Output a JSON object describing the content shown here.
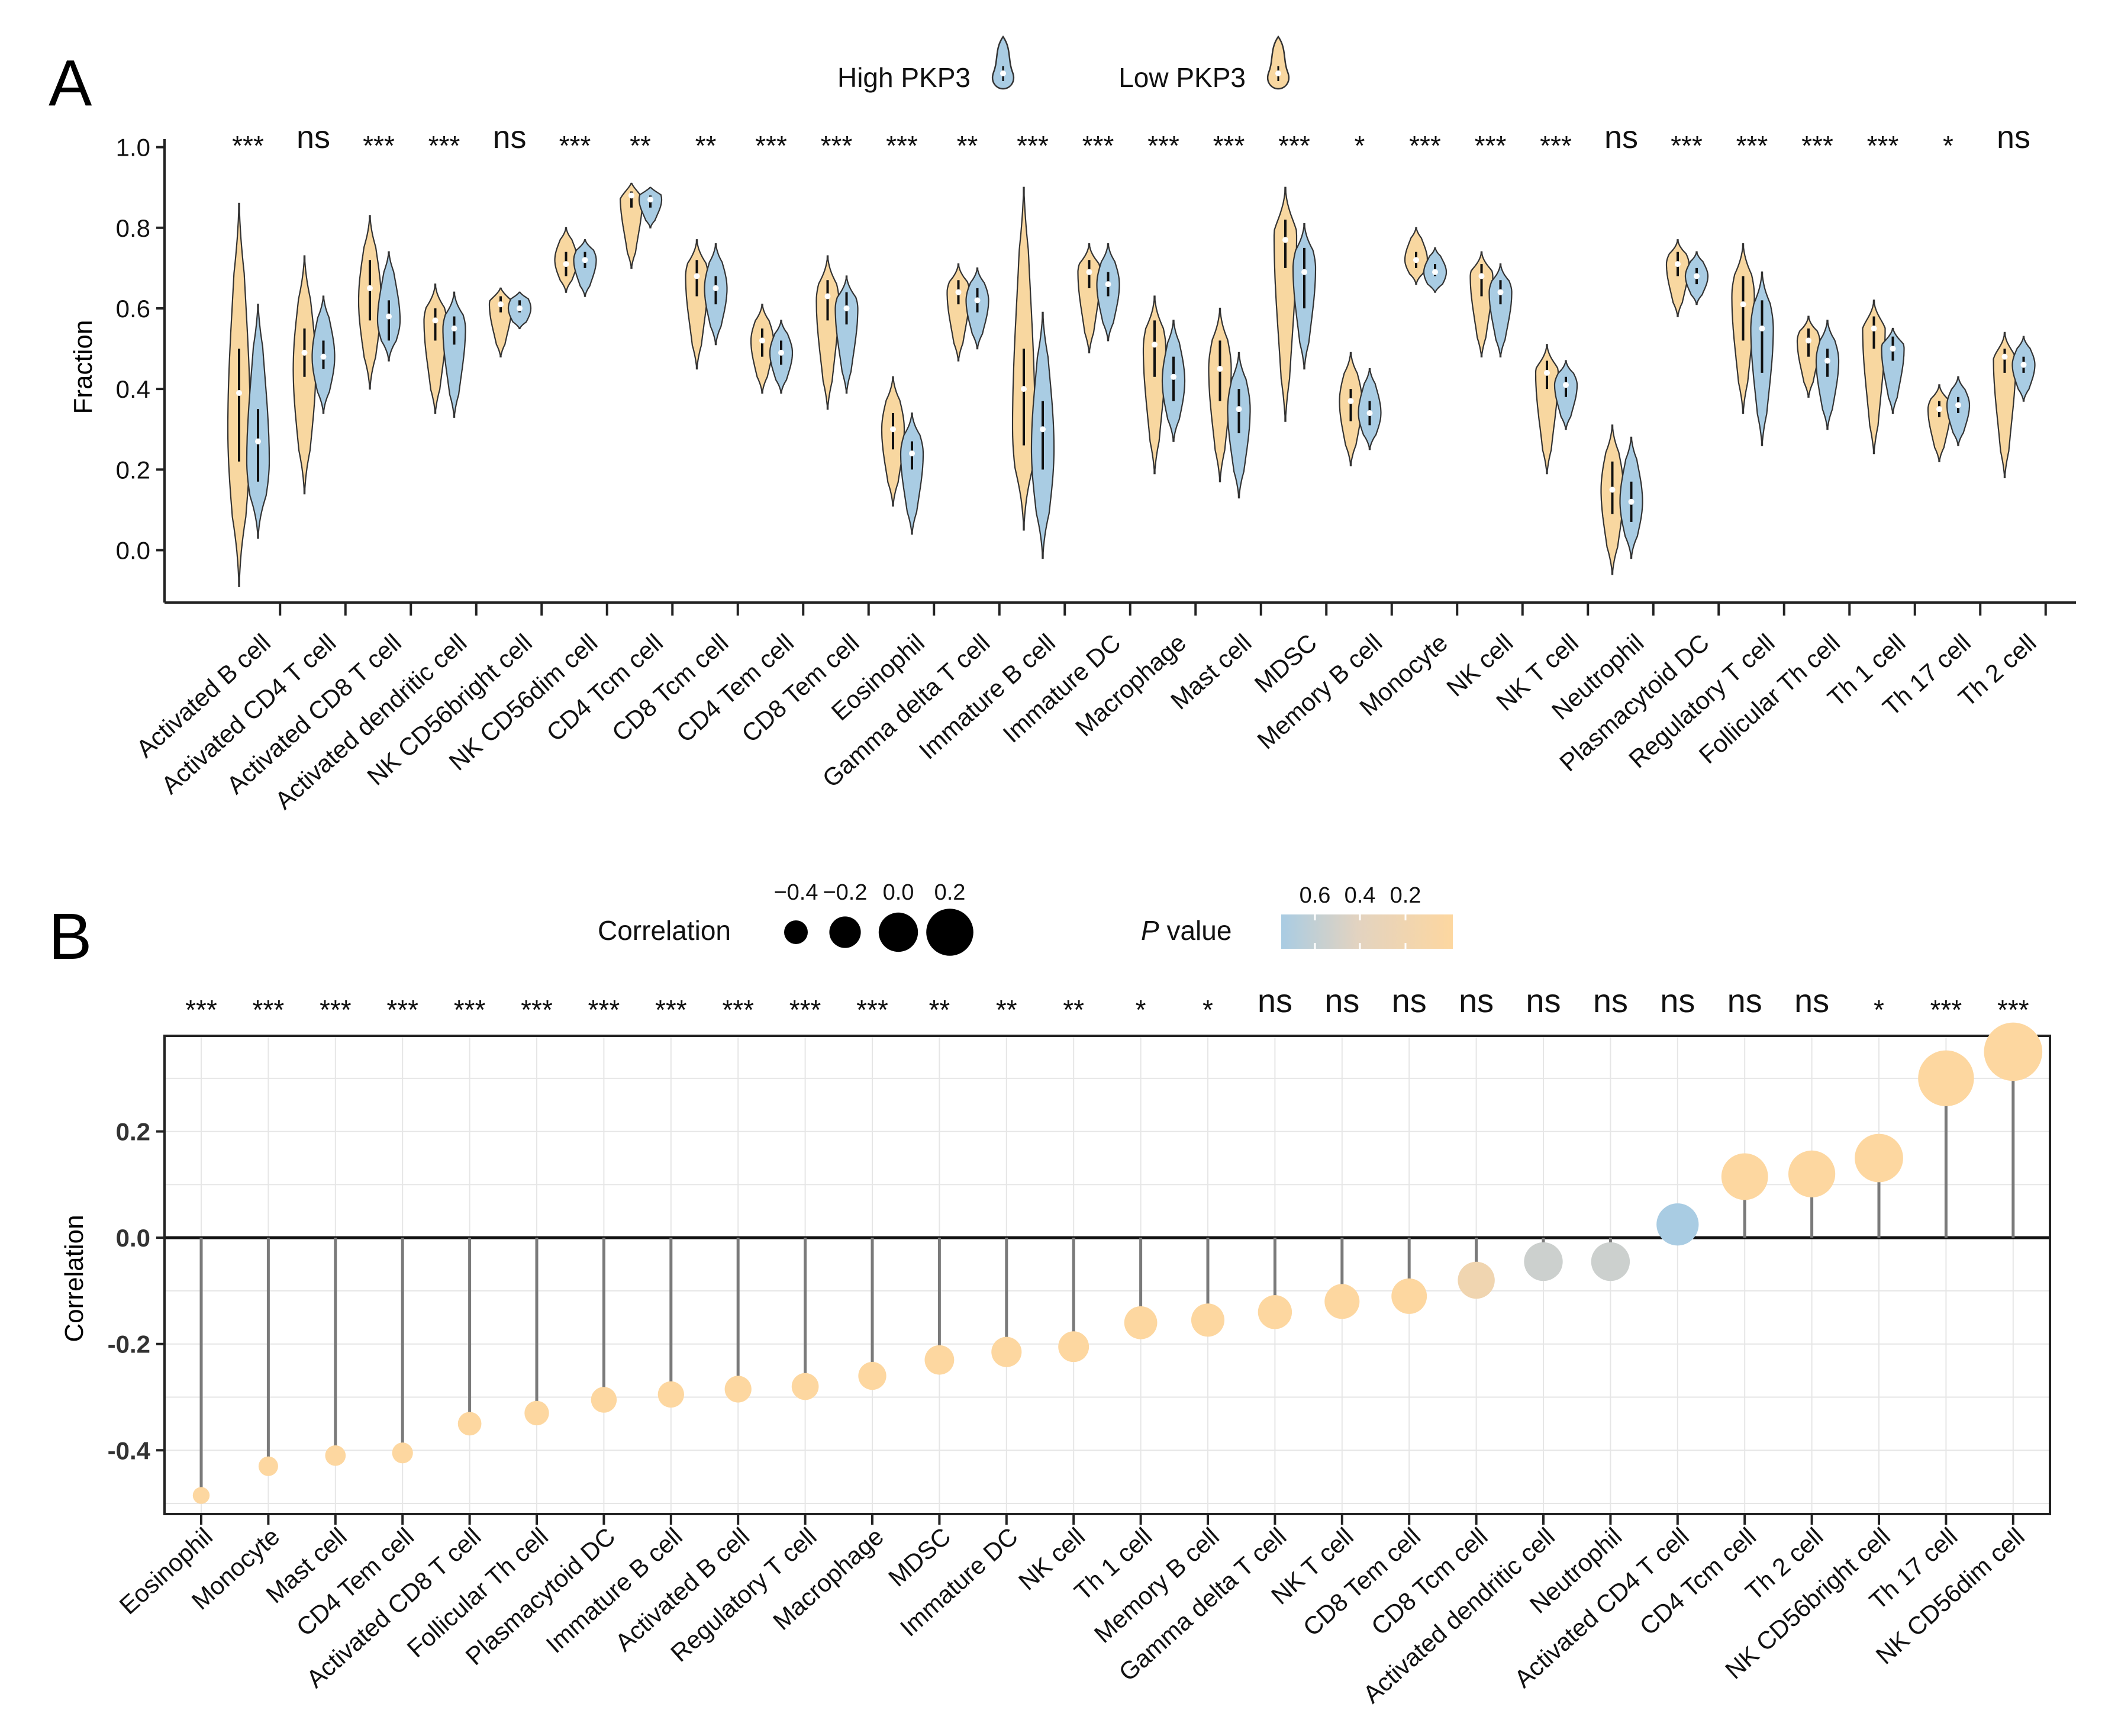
{
  "figure": {
    "panel_a_label": "A",
    "panel_b_label": "B"
  },
  "colors": {
    "low": "#F8D7A0",
    "high": "#A9CCE3",
    "pvalue_low": "#FDD7A0",
    "pvalue_mid": "#E3D3C0",
    "pvalue_high": "#A9CCE3",
    "stem": "#7a7a7a",
    "grid": "#e6e6e6",
    "outline": "#222222"
  },
  "chart_data": [
    {
      "type": "violin",
      "panel": "A",
      "ylabel": "Fraction",
      "ylim": [
        -0.13,
        1.02
      ],
      "yticks": [
        "1.0",
        "0.8",
        "0.6",
        "0.4",
        "0.2",
        "0.0"
      ],
      "ytick_values": [
        1.0,
        0.8,
        0.6,
        0.4,
        0.2,
        0.0
      ],
      "legend": [
        {
          "name": "High PKP3",
          "color_key": "high"
        },
        {
          "name": "Low PKP3",
          "color_key": "low"
        }
      ],
      "categories": [
        "Activated B cell",
        "Activated CD4 T cell",
        "Activated CD8 T cell",
        "Activated dendritic cell",
        "NK CD56bright cell",
        "NK CD56dim cell",
        "CD4 Tcm cell",
        "CD8 Tcm cell",
        "CD4 Tem cell",
        "CD8 Tem cell",
        "Eosinophil",
        "Gamma delta T cell",
        "Immature  B cell",
        "Immature DC",
        "Macrophage",
        "Mast cell",
        "MDSC",
        "Memory B cell",
        "Monocyte",
        "NK cell",
        "NK T cell",
        "Neutrophil",
        "Plasmacytoid DC",
        "Regulatory T cell",
        "Follicular Th cell",
        "Th 1 cell",
        "Th 17 cell",
        "Th 2 cell"
      ],
      "significance": [
        "***",
        "ns",
        "***",
        "***",
        "ns",
        "***",
        "**",
        "**",
        "***",
        "***",
        "***",
        "**",
        "***",
        "***",
        "***",
        "***",
        "***",
        "*",
        "***",
        "***",
        "***",
        "ns",
        "***",
        "***",
        "***",
        "***",
        "*",
        "ns"
      ],
      "series": [
        {
          "name": "Low PKP3",
          "color_key": "low",
          "median": [
            0.39,
            0.49,
            0.65,
            0.57,
            0.61,
            0.71,
            0.88,
            0.68,
            0.52,
            0.63,
            0.3,
            0.64,
            0.4,
            0.69,
            0.51,
            0.45,
            0.77,
            0.37,
            0.72,
            0.68,
            0.44,
            0.15,
            0.71,
            0.61,
            0.52,
            0.55,
            0.35,
            0.48
          ],
          "q1": [
            0.22,
            0.43,
            0.57,
            0.52,
            0.59,
            0.68,
            0.85,
            0.63,
            0.48,
            0.57,
            0.25,
            0.61,
            0.26,
            0.65,
            0.43,
            0.37,
            0.7,
            0.32,
            0.7,
            0.63,
            0.4,
            0.09,
            0.68,
            0.52,
            0.48,
            0.5,
            0.33,
            0.44
          ],
          "q3": [
            0.5,
            0.55,
            0.72,
            0.6,
            0.63,
            0.74,
            0.89,
            0.72,
            0.55,
            0.67,
            0.34,
            0.67,
            0.5,
            0.72,
            0.57,
            0.52,
            0.82,
            0.4,
            0.74,
            0.71,
            0.47,
            0.22,
            0.74,
            0.68,
            0.55,
            0.58,
            0.37,
            0.5
          ],
          "min": [
            -0.09,
            0.14,
            0.4,
            0.34,
            0.48,
            0.64,
            0.7,
            0.45,
            0.39,
            0.35,
            0.11,
            0.47,
            0.05,
            0.49,
            0.19,
            0.17,
            0.32,
            0.21,
            0.66,
            0.48,
            0.19,
            -0.06,
            0.58,
            0.34,
            0.38,
            0.24,
            0.22,
            0.18
          ],
          "max": [
            0.86,
            0.73,
            0.83,
            0.66,
            0.65,
            0.8,
            0.91,
            0.77,
            0.61,
            0.73,
            0.43,
            0.71,
            0.9,
            0.76,
            0.63,
            0.6,
            0.9,
            0.49,
            0.8,
            0.74,
            0.51,
            0.31,
            0.77,
            0.76,
            0.58,
            0.62,
            0.41,
            0.54
          ],
          "modes": [
            0.3,
            0.45,
            0.62,
            0.57,
            0.61,
            0.72,
            0.88,
            0.68,
            0.52,
            0.62,
            0.3,
            0.64,
            0.3,
            0.69,
            0.5,
            0.45,
            0.78,
            0.37,
            0.72,
            0.68,
            0.44,
            0.15,
            0.71,
            0.63,
            0.52,
            0.55,
            0.35,
            0.48
          ]
        },
        {
          "name": "High PKP3",
          "color_key": "high",
          "median": [
            0.27,
            0.48,
            0.58,
            0.55,
            0.6,
            0.72,
            0.87,
            0.65,
            0.49,
            0.6,
            0.24,
            0.62,
            0.3,
            0.66,
            0.43,
            0.35,
            0.69,
            0.34,
            0.69,
            0.64,
            0.41,
            0.12,
            0.68,
            0.55,
            0.47,
            0.5,
            0.36,
            0.46
          ],
          "q1": [
            0.17,
            0.45,
            0.52,
            0.51,
            0.59,
            0.7,
            0.85,
            0.61,
            0.46,
            0.56,
            0.2,
            0.59,
            0.2,
            0.63,
            0.37,
            0.29,
            0.6,
            0.31,
            0.68,
            0.61,
            0.38,
            0.07,
            0.66,
            0.44,
            0.43,
            0.47,
            0.34,
            0.44
          ],
          "q3": [
            0.35,
            0.52,
            0.62,
            0.58,
            0.62,
            0.74,
            0.88,
            0.68,
            0.52,
            0.64,
            0.27,
            0.65,
            0.37,
            0.69,
            0.48,
            0.4,
            0.75,
            0.37,
            0.71,
            0.67,
            0.43,
            0.17,
            0.7,
            0.62,
            0.5,
            0.53,
            0.38,
            0.48
          ],
          "min": [
            0.03,
            0.34,
            0.47,
            0.33,
            0.55,
            0.63,
            0.8,
            0.51,
            0.39,
            0.39,
            0.04,
            0.5,
            -0.02,
            0.52,
            0.27,
            0.13,
            0.45,
            0.25,
            0.64,
            0.48,
            0.3,
            -0.02,
            0.61,
            0.26,
            0.3,
            0.34,
            0.26,
            0.37
          ],
          "max": [
            0.61,
            0.63,
            0.74,
            0.64,
            0.64,
            0.77,
            0.9,
            0.76,
            0.57,
            0.68,
            0.34,
            0.7,
            0.59,
            0.76,
            0.57,
            0.49,
            0.81,
            0.45,
            0.75,
            0.71,
            0.47,
            0.28,
            0.74,
            0.69,
            0.57,
            0.55,
            0.43,
            0.53
          ],
          "modes": [
            0.22,
            0.48,
            0.57,
            0.55,
            0.6,
            0.72,
            0.87,
            0.65,
            0.49,
            0.6,
            0.24,
            0.62,
            0.25,
            0.66,
            0.42,
            0.35,
            0.7,
            0.34,
            0.69,
            0.64,
            0.41,
            0.12,
            0.68,
            0.55,
            0.47,
            0.5,
            0.36,
            0.46
          ]
        }
      ]
    },
    {
      "type": "lollipop",
      "panel": "B",
      "ylabel": "Correlation",
      "ylim": [
        -0.52,
        0.38
      ],
      "yticks": [
        "0.2",
        "0.0",
        "-0.2",
        "-0.4"
      ],
      "ytick_values": [
        0.2,
        0.0,
        -0.2,
        -0.4
      ],
      "legend_size_title": "Correlation",
      "legend_size_labels": [
        "−0.4",
        "−0.2",
        "0.0",
        "0.2"
      ],
      "legend_size_values": [
        -0.4,
        -0.2,
        0.0,
        0.2
      ],
      "legend_color_title_italic": "P",
      "legend_color_title_rest": " value",
      "legend_color_labels": [
        "0.6",
        "0.4",
        "0.2"
      ],
      "legend_color_values": [
        0.6,
        0.4,
        0.2
      ],
      "categories": [
        "Eosinophil",
        "Monocyte",
        "Mast cell",
        "CD4 Tem cell",
        "Activated CD8 T cell",
        "Follicular Th cell",
        "Plasmacytoid DC",
        "Immature  B cell",
        "Activated B cell",
        "Regulatory T cell",
        "Macrophage",
        "MDSC",
        "Immature DC",
        "NK cell",
        "Th 1 cell",
        "Memory B cell",
        "Gamma delta T cell",
        "NK T cell",
        "CD8 Tem cell",
        "CD8 Tcm cell",
        "Activated dendritic cell",
        "Neutrophil",
        "Activated CD4 T cell",
        "CD4 Tcm cell",
        "Th 2 cell",
        "NK CD56bright cell",
        "Th 17 cell",
        "NK CD56dim cell"
      ],
      "values": [
        -0.485,
        -0.43,
        -0.41,
        -0.405,
        -0.35,
        -0.33,
        -0.305,
        -0.295,
        -0.285,
        -0.28,
        -0.26,
        -0.23,
        -0.215,
        -0.205,
        -0.16,
        -0.155,
        -0.14,
        -0.12,
        -0.11,
        -0.08,
        -0.045,
        -0.045,
        0.025,
        0.115,
        0.12,
        0.15,
        0.3,
        0.35
      ],
      "pvalues": [
        0.0,
        0.0,
        0.0,
        0.0,
        0.0,
        0.0,
        0.0,
        0.0,
        0.0,
        0.0,
        0.0,
        0.001,
        0.002,
        0.003,
        0.02,
        0.02,
        0.06,
        0.08,
        0.1,
        0.3,
        0.5,
        0.5,
        0.7,
        0.09,
        0.08,
        0.02,
        0.0,
        0.0
      ],
      "significance": [
        "***",
        "***",
        "***",
        "***",
        "***",
        "***",
        "***",
        "***",
        "***",
        "***",
        "***",
        "**",
        "**",
        "**",
        "*",
        "*",
        "ns",
        "ns",
        "ns",
        "ns",
        "ns",
        "ns",
        "ns",
        "ns",
        "ns",
        "*",
        "***",
        "***"
      ]
    }
  ]
}
